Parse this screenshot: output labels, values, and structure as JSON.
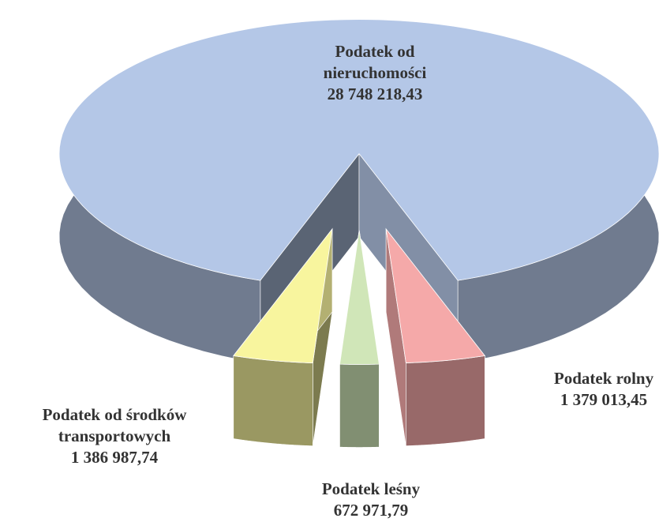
{
  "chart_data": {
    "type": "pie3d",
    "categories": [
      "Podatek od nieruchomości",
      "Podatek rolny",
      "Podatek leśny",
      "Podatek od środków transportowych"
    ],
    "values": [
      28748218.43,
      1379013.45,
      672971.79,
      1386987.74
    ],
    "value_labels": [
      "28 748 218,43",
      "1 379 013,45",
      "672 971,79",
      "1 386 987,74"
    ],
    "colors": [
      "#b4c7e7",
      "#f5a9a9",
      "#d0e6b8",
      "#f8f59e"
    ]
  }
}
